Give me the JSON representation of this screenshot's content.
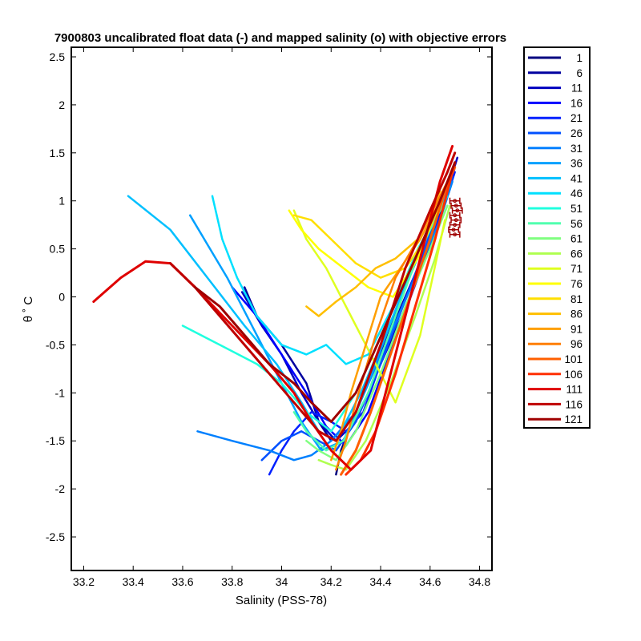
{
  "chart_data": {
    "type": "line",
    "title": "7900803 uncalibrated float data (-) and mapped salinity (o) with objective errors",
    "xlabel": "Salinity (PSS-78)",
    "ylabel": "θ ˚ C",
    "xlim": [
      33.15,
      34.85
    ],
    "ylim": [
      -2.85,
      2.6
    ],
    "x_ticks": [
      33.2,
      33.4,
      33.6,
      33.8,
      34,
      34.2,
      34.4,
      34.6,
      34.8
    ],
    "x_tick_labels": [
      "33.2",
      "33.4",
      "33.6",
      "33.8",
      "34",
      "34.2",
      "34.4",
      "34.6",
      "34.8"
    ],
    "y_ticks": [
      2.5,
      2,
      1.5,
      1,
      0.5,
      0,
      -0.5,
      -1,
      -1.5,
      -2,
      -2.5
    ],
    "y_tick_labels": [
      "2.5",
      "2",
      "1.5",
      "1",
      "0.5",
      "0",
      "-0.5",
      "-1",
      "-1.5",
      "-2",
      "-2.5"
    ],
    "grid": false,
    "legend_position": "outside-right",
    "series": [
      {
        "name": "1",
        "color": "#00007f",
        "x": [
          34.22,
          34.24,
          34.3,
          34.4,
          34.5,
          34.58,
          34.66,
          34.7
        ],
        "y": [
          -1.85,
          -1.6,
          -1.2,
          -0.6,
          0.1,
          0.6,
          1.1,
          1.4
        ]
      },
      {
        "name": "6",
        "color": "#00009f",
        "x": [
          33.85,
          33.9,
          34.0,
          34.1,
          34.15,
          34.2,
          34.3,
          34.4,
          34.5,
          34.6,
          34.66,
          34.7
        ],
        "y": [
          0.1,
          -0.2,
          -0.5,
          -0.9,
          -1.3,
          -1.5,
          -1.2,
          -0.6,
          0.0,
          0.6,
          1.1,
          1.4
        ]
      },
      {
        "name": "11",
        "color": "#0000bf",
        "x": [
          33.84,
          33.92,
          34.0,
          34.08,
          34.15,
          34.22,
          34.3,
          34.4,
          34.52,
          34.62,
          34.68,
          34.71
        ],
        "y": [
          0.05,
          -0.3,
          -0.6,
          -1.0,
          -1.3,
          -1.5,
          -1.3,
          -0.7,
          0.0,
          0.7,
          1.2,
          1.45
        ]
      },
      {
        "name": "16",
        "color": "#0000ff",
        "x": [
          33.8,
          33.9,
          34.0,
          34.1,
          34.18,
          34.26,
          34.35,
          34.45,
          34.55,
          34.64,
          34.7
        ],
        "y": [
          0.1,
          -0.2,
          -0.6,
          -1.0,
          -1.35,
          -1.55,
          -1.2,
          -0.5,
          0.2,
          0.8,
          1.35
        ]
      },
      {
        "name": "21",
        "color": "#0020ff",
        "x": [
          33.95,
          34.0,
          34.05,
          34.12,
          34.2,
          34.26,
          34.33,
          34.44,
          34.55,
          34.65,
          34.7
        ],
        "y": [
          -1.85,
          -1.6,
          -1.4,
          -1.2,
          -1.3,
          -1.4,
          -1.2,
          -0.4,
          0.3,
          0.9,
          1.3
        ]
      },
      {
        "name": "26",
        "color": "#0050ff",
        "x": [
          33.92,
          34.0,
          34.08,
          34.15,
          34.22,
          34.3,
          34.4,
          34.52,
          34.62,
          34.69
        ],
        "y": [
          -1.7,
          -1.5,
          -1.4,
          -1.5,
          -1.6,
          -1.3,
          -0.7,
          0.1,
          0.8,
          1.25
        ]
      },
      {
        "name": "31",
        "color": "#0080ff",
        "x": [
          33.66,
          33.8,
          33.95,
          34.05,
          34.12,
          34.2,
          34.3,
          34.42,
          34.54,
          34.64,
          34.69
        ],
        "y": [
          -1.4,
          -1.5,
          -1.6,
          -1.7,
          -1.65,
          -1.5,
          -1.2,
          -0.5,
          0.2,
          0.8,
          1.2
        ]
      },
      {
        "name": "36",
        "color": "#00a0ff",
        "x": [
          33.63,
          33.78,
          33.9,
          34.0,
          34.08,
          34.16,
          34.25,
          34.35,
          34.48,
          34.6,
          34.68
        ],
        "y": [
          0.85,
          0.2,
          -0.4,
          -0.9,
          -1.3,
          -1.6,
          -1.5,
          -0.9,
          0.0,
          0.7,
          1.15
        ]
      },
      {
        "name": "41",
        "color": "#00c0ff",
        "x": [
          33.38,
          33.55,
          33.7,
          33.85,
          33.98,
          34.08,
          34.15,
          34.22,
          34.32,
          34.45,
          34.58,
          34.67
        ],
        "y": [
          1.05,
          0.7,
          0.2,
          -0.3,
          -0.7,
          -1.1,
          -1.4,
          -1.5,
          -1.0,
          -0.2,
          0.6,
          1.1
        ]
      },
      {
        "name": "46",
        "color": "#00e0ff",
        "x": [
          33.72,
          33.76,
          33.82,
          33.9,
          34.0,
          34.1,
          34.18,
          34.26,
          34.35,
          34.47,
          34.6,
          34.67
        ],
        "y": [
          1.05,
          0.6,
          0.2,
          -0.2,
          -0.5,
          -0.6,
          -0.5,
          -0.7,
          -0.6,
          0.0,
          0.7,
          1.05
        ]
      },
      {
        "name": "51",
        "color": "#20ffdf",
        "x": [
          33.6,
          33.75,
          33.9,
          34.0,
          34.1,
          34.2,
          34.3,
          34.42,
          34.55,
          34.66
        ],
        "y": [
          -0.3,
          -0.5,
          -0.7,
          -0.9,
          -1.2,
          -1.4,
          -1.0,
          -0.3,
          0.5,
          1.0
        ]
      },
      {
        "name": "56",
        "color": "#50ffaf",
        "x": [
          34.05,
          34.1,
          34.18,
          34.25,
          34.35,
          34.46,
          34.56,
          34.66
        ],
        "y": [
          -1.2,
          -1.4,
          -1.6,
          -1.5,
          -1.0,
          -0.2,
          0.5,
          1.0
        ]
      },
      {
        "name": "61",
        "color": "#80ff80",
        "x": [
          34.1,
          34.15,
          34.22,
          34.3,
          34.4,
          34.5,
          34.6,
          34.67
        ],
        "y": [
          -1.5,
          -1.6,
          -1.7,
          -1.4,
          -0.8,
          -0.1,
          0.5,
          0.95
        ]
      },
      {
        "name": "66",
        "color": "#afff50",
        "x": [
          34.15,
          34.2,
          34.26,
          34.34,
          34.44,
          34.54,
          34.62,
          34.68
        ],
        "y": [
          -1.7,
          -1.75,
          -1.8,
          -1.5,
          -0.9,
          -0.2,
          0.4,
          0.95
        ]
      },
      {
        "name": "71",
        "color": "#dfff20",
        "x": [
          34.05,
          34.1,
          34.18,
          34.26,
          34.36,
          34.46,
          34.56,
          34.66
        ],
        "y": [
          0.9,
          0.6,
          0.3,
          -0.1,
          -0.6,
          -1.1,
          -0.4,
          0.8
        ]
      },
      {
        "name": "76",
        "color": "#ffff00",
        "x": [
          34.03,
          34.08,
          34.15,
          34.25,
          34.35,
          34.45,
          34.55,
          34.64
        ],
        "y": [
          0.9,
          0.7,
          0.5,
          0.3,
          0.1,
          0.0,
          0.4,
          1.0
        ]
      },
      {
        "name": "81",
        "color": "#ffdf00",
        "x": [
          34.05,
          34.12,
          34.2,
          34.3,
          34.4,
          34.5,
          34.58,
          34.66
        ],
        "y": [
          0.85,
          0.8,
          0.6,
          0.35,
          0.2,
          0.3,
          0.6,
          1.1
        ]
      },
      {
        "name": "86",
        "color": "#ffbf00",
        "x": [
          34.1,
          34.15,
          34.22,
          34.3,
          34.38,
          34.46,
          34.55,
          34.64
        ],
        "y": [
          -0.1,
          -0.2,
          -0.05,
          0.1,
          0.3,
          0.4,
          0.6,
          1.1
        ]
      },
      {
        "name": "91",
        "color": "#ff9f00",
        "x": [
          34.2,
          34.24,
          34.28,
          34.34,
          34.4,
          34.48,
          34.56,
          34.64,
          34.68
        ],
        "y": [
          -1.7,
          -1.4,
          -1.0,
          -0.5,
          0.0,
          0.3,
          0.6,
          1.0,
          1.2
        ]
      },
      {
        "name": "96",
        "color": "#ff7f00",
        "x": [
          34.22,
          34.26,
          34.3,
          34.38,
          34.46,
          34.55,
          34.63,
          34.68
        ],
        "y": [
          -1.8,
          -1.5,
          -1.1,
          -0.4,
          0.2,
          0.6,
          1.0,
          1.25
        ]
      },
      {
        "name": "101",
        "color": "#ff5f00",
        "x": [
          34.24,
          34.3,
          34.36,
          34.44,
          34.52,
          34.6,
          34.66,
          34.7
        ],
        "y": [
          -1.85,
          -1.6,
          -1.2,
          -0.6,
          0.0,
          0.6,
          1.1,
          1.35
        ]
      },
      {
        "name": "106",
        "color": "#ff2f00",
        "x": [
          34.26,
          34.32,
          34.38,
          34.46,
          34.54,
          34.62,
          34.67,
          34.7
        ],
        "y": [
          -1.85,
          -1.7,
          -1.4,
          -0.8,
          -0.1,
          0.6,
          1.1,
          1.4
        ]
      },
      {
        "name": "111",
        "color": "#df0000",
        "x": [
          33.24,
          33.35,
          33.45,
          33.55,
          33.65,
          33.8,
          33.95,
          34.05,
          34.12,
          34.2,
          34.28,
          34.36,
          34.46,
          34.56,
          34.64,
          34.69
        ],
        "y": [
          -0.05,
          0.2,
          0.37,
          0.35,
          0.1,
          -0.3,
          -0.7,
          -1.0,
          -1.3,
          -1.6,
          -1.8,
          -1.6,
          -0.6,
          0.4,
          1.2,
          1.57
        ]
      },
      {
        "name": "116",
        "color": "#bf0000",
        "x": [
          33.55,
          33.65,
          33.75,
          33.85,
          33.95,
          34.05,
          34.15,
          34.22,
          34.3,
          34.4,
          34.5,
          34.6,
          34.67,
          34.7
        ],
        "y": [
          0.35,
          0.1,
          -0.2,
          -0.5,
          -0.8,
          -1.1,
          -1.4,
          -1.5,
          -1.2,
          -0.5,
          0.3,
          0.9,
          1.3,
          1.5
        ]
      },
      {
        "name": "121",
        "color": "#9f0000",
        "x": [
          33.65,
          33.75,
          33.85,
          33.95,
          34.05,
          34.12,
          34.2,
          34.3,
          34.42,
          34.54,
          34.64,
          34.7
        ],
        "y": [
          0.1,
          -0.1,
          -0.4,
          -0.7,
          -0.9,
          -1.1,
          -1.3,
          -1.0,
          -0.3,
          0.4,
          1.0,
          1.4
        ]
      }
    ],
    "mapped_salinity_errorbars": {
      "color": "#9f0000",
      "points": [
        {
          "x": 34.7,
          "y": 1.0,
          "err": 0.02
        },
        {
          "x": 34.705,
          "y": 0.95,
          "err": 0.02
        },
        {
          "x": 34.71,
          "y": 0.9,
          "err": 0.02
        },
        {
          "x": 34.7,
          "y": 0.85,
          "err": 0.02
        },
        {
          "x": 34.705,
          "y": 0.8,
          "err": 0.02
        },
        {
          "x": 34.7,
          "y": 0.75,
          "err": 0.02
        },
        {
          "x": 34.695,
          "y": 0.7,
          "err": 0.02
        },
        {
          "x": 34.7,
          "y": 0.65,
          "err": 0.02
        }
      ]
    }
  }
}
